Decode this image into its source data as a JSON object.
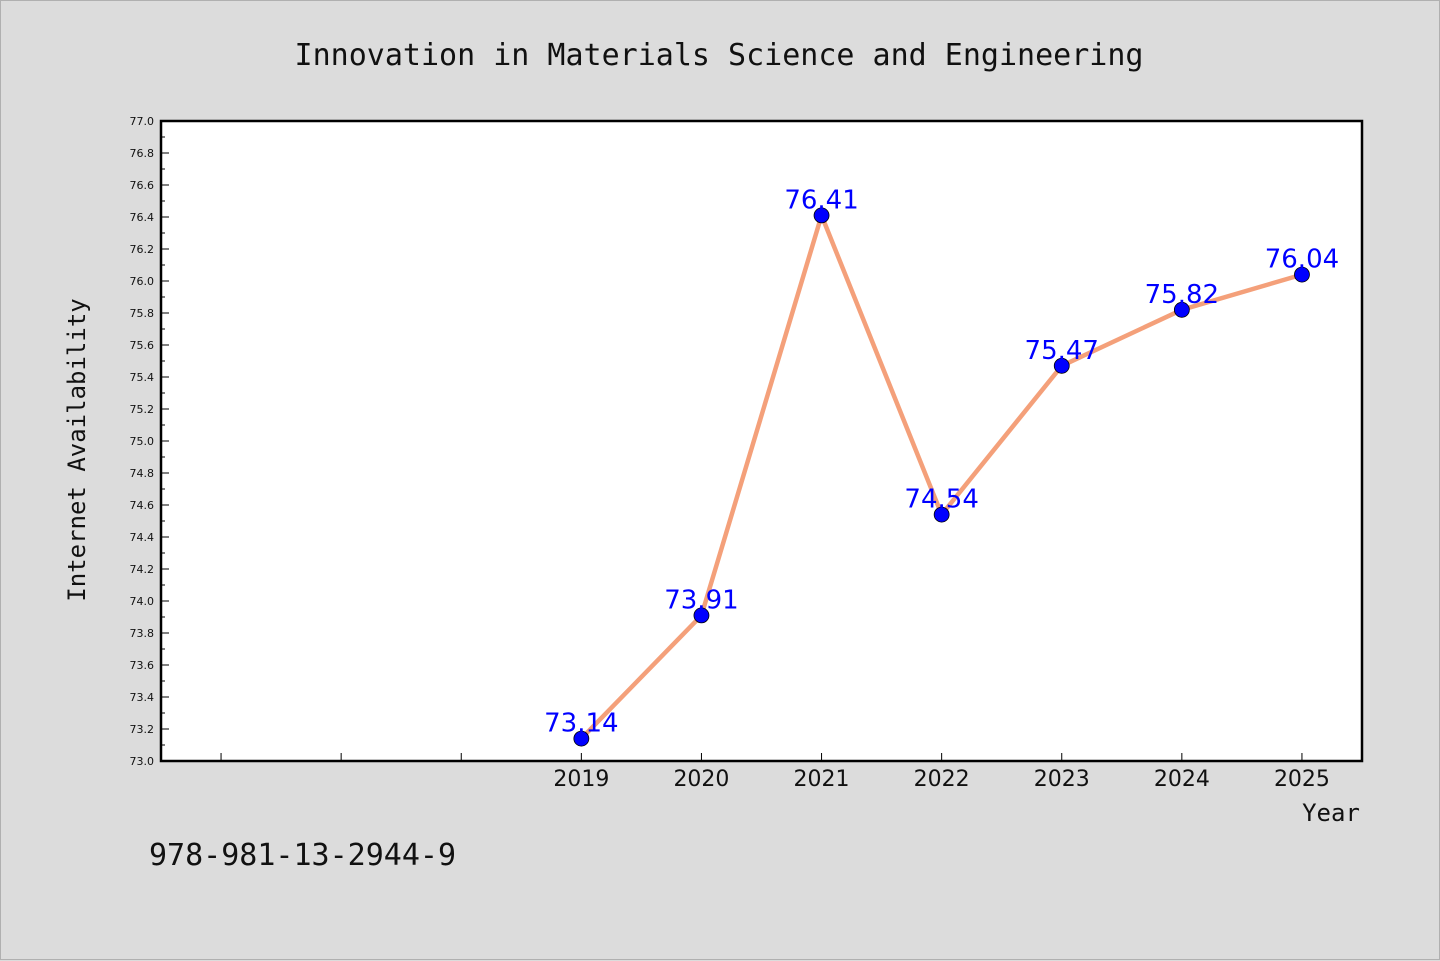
{
  "chart_data": {
    "type": "line",
    "title": "Innovation in Materials Science and Engineering",
    "xlabel": "Year",
    "ylabel": "Internet Availability",
    "categories": [
      "2019",
      "2020",
      "2021",
      "2022",
      "2023",
      "2024",
      "2025"
    ],
    "x_slot_count": 10,
    "series": [
      {
        "values": [
          73.14,
          73.91,
          76.41,
          74.54,
          75.47,
          75.82,
          76.04
        ],
        "data_labels": [
          "73.14",
          "73.91",
          "76.41",
          "74.54",
          "75.47",
          "75.82",
          "76.04"
        ]
      }
    ],
    "ylim": [
      73.0,
      77.0
    ],
    "yticks": [
      "73.0",
      "73.2",
      "73.4",
      "73.6",
      "73.8",
      "74.0",
      "74.2",
      "74.4",
      "74.6",
      "74.8",
      "75.0",
      "75.2",
      "75.4",
      "75.6",
      "75.8",
      "76.0",
      "76.2",
      "76.4",
      "76.6",
      "76.8",
      "77.0"
    ],
    "grid": false,
    "colors": {
      "line": "#f4a07a",
      "marker": "#0000ff",
      "data_label": "#0000ff",
      "plot_bg": "#ffffff",
      "page_bg": "#dcdcdc"
    }
  },
  "footer_text": "978-981-13-2944-9"
}
